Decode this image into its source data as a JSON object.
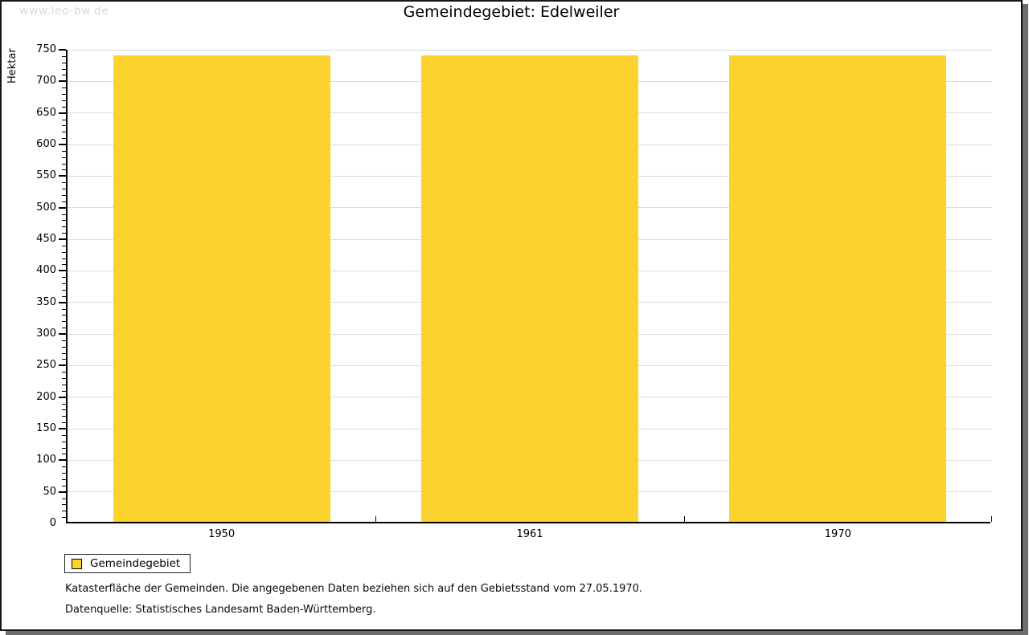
{
  "watermark": "www.leo-bw.de",
  "title": "Gemeindegebiet: Edelweiler",
  "chart_data": {
    "type": "bar",
    "title": "Gemeindegebiet: Edelweiler",
    "categories": [
      "1950",
      "1961",
      "1970"
    ],
    "series": [
      {
        "name": "Gemeindegebiet",
        "values": [
          738,
          738,
          738
        ]
      }
    ],
    "xlabel": "",
    "ylabel": "Hektar",
    "ylim": [
      0,
      750
    ],
    "y_major_step": 50,
    "y_minor_step": 10,
    "grid": "horizontal-major",
    "legend_position": "bottom-left",
    "bar_color": "#fcd32e",
    "gridline_color": "#dcdcdc"
  },
  "legend": {
    "items": [
      {
        "label": "Gemeindegebiet",
        "color": "#fcd32e"
      }
    ]
  },
  "footnotes": [
    "Katasterfläche der Gemeinden. Die angegebenen Daten beziehen sich auf den Gebietsstand vom 27.05.1970.",
    "Datenquelle: Statistisches Landesamt Baden-Württemberg."
  ]
}
